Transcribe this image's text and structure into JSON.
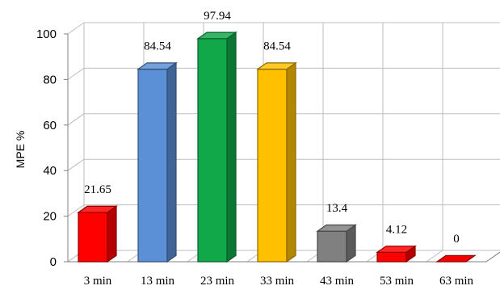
{
  "chart_data": {
    "type": "bar",
    "style": "3d-column",
    "categories": [
      "3 min",
      "13 min",
      "23 min",
      "33 min",
      "43 min",
      "53 min",
      "63 min"
    ],
    "values": [
      21.65,
      84.54,
      97.94,
      84.54,
      13.4,
      4.12,
      0
    ],
    "data_labels": [
      "21.65",
      "84.54",
      "97.94",
      "84.54",
      "13.4",
      "4.12",
      "0"
    ],
    "colors": [
      "#ff0000",
      "#5b8fd6",
      "#11a84a",
      "#ffc000",
      "#808080",
      "#ff0000",
      "#ff0000"
    ],
    "ylabel": "MPE %",
    "xlabel": "",
    "ylim": [
      0,
      100
    ],
    "yticks": [
      0,
      20,
      40,
      60,
      80,
      100
    ],
    "grid": true
  }
}
